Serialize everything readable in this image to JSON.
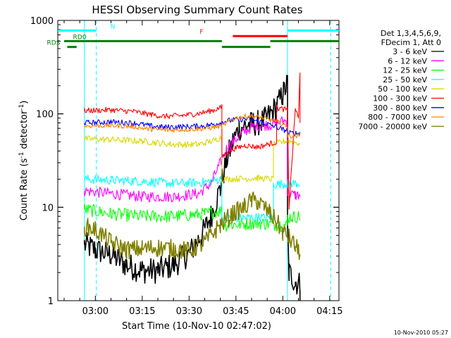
{
  "chart_data": {
    "type": "line",
    "title": "HESSI Observing Summary Count Rates",
    "xlabel": "Start Time (10-Nov-10 02:47:02)",
    "ylabel_main": "Count Rate (s",
    "ylabel_sup1": "-1",
    "ylabel_mid": " detector",
    "ylabel_sup2": "-1",
    "ylabel_end": ")",
    "footer": "10-Nov-2010 05:27",
    "xlim": [
      -12.03,
      77.97
    ],
    "ylim": [
      1,
      1000
    ],
    "yscale": "log",
    "x_ticks": [
      {
        "value": 0,
        "label": "03:00"
      },
      {
        "value": 15,
        "label": "03:15"
      },
      {
        "value": 30,
        "label": "03:30"
      },
      {
        "value": 45,
        "label": "03:45"
      },
      {
        "value": 60,
        "label": "04:00"
      },
      {
        "value": 75,
        "label": "04:15"
      }
    ],
    "y_ticks": [
      {
        "value": 1,
        "label": "1"
      },
      {
        "value": 10,
        "label": "10"
      },
      {
        "value": 100,
        "label": "100"
      },
      {
        "value": 1000,
        "label": "1000"
      }
    ],
    "legend_header": [
      "Det 1,3,4,5,6,9,",
      "FDecim 1, Att 0"
    ],
    "series": [
      {
        "name": "3 - 6 keV",
        "color": "#000000",
        "noise": 0.14,
        "points": [
          [
            -3.5,
            1
          ],
          [
            -3.5,
            4
          ],
          [
            0,
            3.5
          ],
          [
            5,
            3.1
          ],
          [
            10,
            2.4
          ],
          [
            15,
            2.1
          ],
          [
            20,
            2.1
          ],
          [
            25,
            2.4
          ],
          [
            30,
            3.2
          ],
          [
            34,
            5
          ],
          [
            37,
            8
          ],
          [
            40,
            16
          ],
          [
            42,
            32
          ],
          [
            44,
            50
          ],
          [
            46,
            70
          ],
          [
            48,
            75
          ],
          [
            50,
            78
          ],
          [
            52,
            80
          ],
          [
            54,
            84
          ],
          [
            56,
            100
          ],
          [
            58,
            120
          ],
          [
            60,
            160
          ],
          [
            61.5,
            215
          ],
          [
            61.5,
            6
          ],
          [
            62,
            2
          ],
          [
            64,
            1.6
          ],
          [
            65.5,
            1.5
          ],
          [
            65.5,
            1
          ]
        ]
      },
      {
        "name": "6 - 12 keV",
        "color": "#ff00ff",
        "noise": 0.06,
        "points": [
          [
            -3.5,
            1
          ],
          [
            -3.5,
            15
          ],
          [
            5,
            14
          ],
          [
            15,
            13
          ],
          [
            25,
            13
          ],
          [
            33,
            14
          ],
          [
            37,
            18
          ],
          [
            40,
            30
          ],
          [
            42,
            42
          ],
          [
            44,
            50
          ],
          [
            47,
            62
          ],
          [
            50,
            72
          ],
          [
            53,
            76
          ],
          [
            56,
            76
          ],
          [
            58,
            79
          ],
          [
            60,
            84
          ],
          [
            61.5,
            84
          ],
          [
            61.5,
            14
          ],
          [
            64,
            13.5
          ],
          [
            65.5,
            13.5
          ],
          [
            65.5,
            13
          ]
        ]
      },
      {
        "name": "12 - 25 keV",
        "color": "#00ff00",
        "noise": 0.07,
        "points": [
          [
            -3.5,
            1
          ],
          [
            -3.5,
            9.5
          ],
          [
            5,
            8.5
          ],
          [
            15,
            8
          ],
          [
            25,
            8
          ],
          [
            35,
            8.5
          ],
          [
            40.5,
            9.2
          ],
          [
            40.5,
            6.4
          ],
          [
            46,
            6.6
          ],
          [
            52,
            6.8
          ],
          [
            58,
            6.5
          ],
          [
            61.5,
            6.4
          ],
          [
            61.5,
            7.8
          ],
          [
            65.5,
            8
          ]
        ]
      },
      {
        "name": "25 - 50 keV",
        "color": "#00ffff",
        "noise": 0.05,
        "points": [
          [
            -3.5,
            1
          ],
          [
            -3.5,
            20
          ],
          [
            5,
            19.5
          ],
          [
            15,
            19
          ],
          [
            25,
            18
          ],
          [
            35,
            18.5
          ],
          [
            40.5,
            20
          ],
          [
            40.5,
            7.5
          ],
          [
            46,
            7.7
          ],
          [
            52,
            7.8
          ],
          [
            57,
            7.6
          ],
          [
            57,
            17.5
          ],
          [
            61.5,
            18
          ],
          [
            65.5,
            18
          ]
        ]
      },
      {
        "name": "50 - 100 keV",
        "color": "#d8d800",
        "noise": 0.035,
        "points": [
          [
            -3.5,
            1
          ],
          [
            -3.5,
            54
          ],
          [
            5,
            53
          ],
          [
            15,
            51
          ],
          [
            25,
            47
          ],
          [
            33,
            47
          ],
          [
            38,
            52
          ],
          [
            40.5,
            57
          ],
          [
            40.5,
            20
          ],
          [
            46,
            20.2
          ],
          [
            52,
            20.5
          ],
          [
            57,
            20
          ],
          [
            57,
            47
          ],
          [
            61.5,
            52
          ],
          [
            65.5,
            48
          ]
        ]
      },
      {
        "name": "100 - 300 keV",
        "color": "#ff0000",
        "noise": 0.03,
        "points": [
          [
            -3.5,
            1
          ],
          [
            -3.5,
            108
          ],
          [
            5,
            110
          ],
          [
            12,
            106
          ],
          [
            18,
            98
          ],
          [
            22,
            94
          ],
          [
            28,
            96
          ],
          [
            34,
            102
          ],
          [
            38,
            110
          ],
          [
            40.5,
            118
          ],
          [
            40.5,
            35
          ],
          [
            44,
            42
          ],
          [
            48,
            46
          ],
          [
            52,
            44
          ],
          [
            56,
            48
          ],
          [
            58,
            50
          ],
          [
            58,
            116
          ],
          [
            61.5,
            110
          ],
          [
            62,
            10
          ],
          [
            64,
            115
          ],
          [
            65,
            88
          ],
          [
            65.5,
            290
          ],
          [
            65.5,
            80
          ]
        ]
      },
      {
        "name": "300 - 800 keV",
        "color": "#0000ff",
        "noise": 0.03,
        "points": [
          [
            -3.5,
            1
          ],
          [
            -3.5,
            80
          ],
          [
            5,
            82
          ],
          [
            12,
            80
          ],
          [
            18,
            74
          ],
          [
            22,
            72
          ],
          [
            28,
            73
          ],
          [
            34,
            74
          ],
          [
            38,
            77
          ],
          [
            40.5,
            82
          ],
          [
            44,
            86
          ],
          [
            48,
            88
          ],
          [
            52,
            84
          ],
          [
            56,
            76
          ],
          [
            60,
            68
          ],
          [
            61.5,
            66
          ],
          [
            61.5,
            62
          ],
          [
            65.5,
            62
          ]
        ]
      },
      {
        "name": "800 - 7000 keV",
        "color": "#ff8000",
        "noise": 0.025,
        "points": [
          [
            -3.5,
            5
          ],
          [
            -3.5,
            74
          ],
          [
            5,
            75
          ],
          [
            12,
            73
          ],
          [
            18,
            68
          ],
          [
            24,
            67
          ],
          [
            30,
            68
          ],
          [
            36,
            70
          ],
          [
            40.5,
            74
          ],
          [
            44,
            88
          ],
          [
            48,
            95
          ],
          [
            52,
            93
          ],
          [
            56,
            86
          ],
          [
            60,
            78
          ],
          [
            61.5,
            74
          ],
          [
            61.5,
            58
          ],
          [
            65.5,
            58
          ]
        ]
      },
      {
        "name": "7000 - 20000 keV",
        "color": "#808000",
        "noise": 0.1,
        "points": [
          [
            -3.5,
            1
          ],
          [
            -3.5,
            6.2
          ],
          [
            0,
            5.8
          ],
          [
            5,
            4.2
          ],
          [
            10,
            3.5
          ],
          [
            15,
            3.6
          ],
          [
            20,
            3.7
          ],
          [
            25,
            3.6
          ],
          [
            30,
            3.4
          ],
          [
            35,
            4.2
          ],
          [
            40,
            6.5
          ],
          [
            44,
            8.5
          ],
          [
            48,
            10.2
          ],
          [
            50,
            11.8
          ],
          [
            52,
            11.5
          ],
          [
            54,
            10
          ],
          [
            56,
            8.5
          ],
          [
            58,
            7
          ],
          [
            60,
            5.4
          ],
          [
            62,
            4.7
          ],
          [
            64,
            3.8
          ],
          [
            65.5,
            3.3
          ]
        ]
      }
    ],
    "vlines": [
      {
        "x": -3.5,
        "style": "solid",
        "color": "#00ffff"
      },
      {
        "x": 0.3,
        "style": "dashed",
        "color": "#00ffff"
      },
      {
        "x": 61.5,
        "style": "solid",
        "color": "#00ffff"
      },
      {
        "x": 75.3,
        "style": "dashed",
        "color": "#00ffff"
      }
    ],
    "flag_bars": [
      {
        "label": "N",
        "color": "#00ffff",
        "value": 780,
        "segments": [
          [
            -12,
            0.3
          ],
          [
            61.5,
            78
          ]
        ]
      },
      {
        "label": "F",
        "color": "#ff0000",
        "value": 680,
        "segments": [
          [
            44,
            61.5
          ]
        ]
      },
      {
        "label": "RD0",
        "color": "#008000",
        "value": 600,
        "segments": [
          [
            -10,
            40.5
          ],
          [
            56,
            78
          ]
        ]
      },
      {
        "label": "RDS",
        "color": "#008000",
        "value": 520,
        "segments": [
          [
            -9,
            -6
          ],
          [
            40.5,
            56
          ]
        ]
      }
    ]
  }
}
